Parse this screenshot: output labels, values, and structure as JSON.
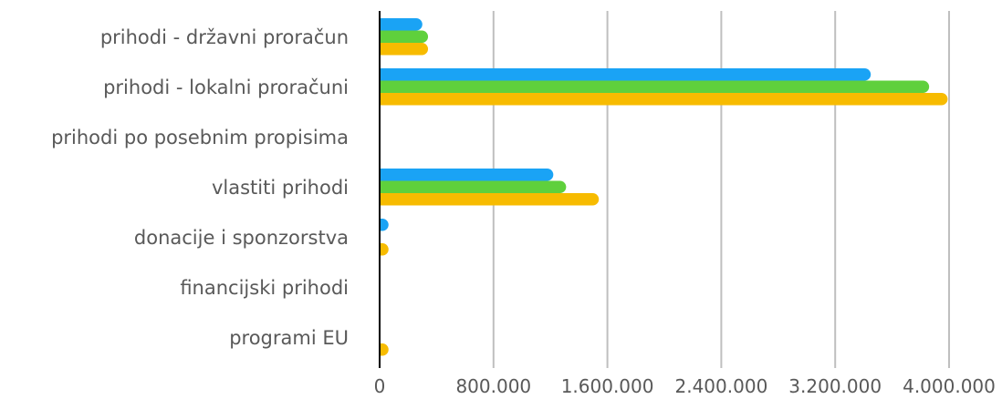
{
  "chart_data": {
    "type": "bar",
    "orientation": "horizontal",
    "title": "",
    "xlabel": "",
    "ylabel": "",
    "categories": [
      "prihodi - državni proračun",
      "prihodi - lokalni proračuni",
      "prihodi po posebnim propisima",
      "vlastiti prihodi ",
      "donacije i sponzorstva",
      "financijski prihodi",
      "programi EU"
    ],
    "series": [
      {
        "color": "#1aa3f5",
        "values": [
          300000,
          3450000,
          0,
          1220000,
          25000,
          0,
          0
        ]
      },
      {
        "color": "#5fd03c",
        "values": [
          340000,
          3860000,
          0,
          1310000,
          0,
          0,
          0
        ]
      },
      {
        "color": "#f7bb00",
        "values": [
          340000,
          3990000,
          0,
          1540000,
          18000,
          0,
          18000
        ]
      }
    ],
    "x_ticks": [
      "0",
      "800.000",
      "1.600.000",
      "2.400.000",
      "3.200.000",
      "4.000.000"
    ],
    "x_tick_values": [
      0,
      800000,
      1600000,
      2400000,
      3200000,
      4000000
    ],
    "xlim": [
      0,
      4000000
    ],
    "grid": true,
    "legend": "none"
  }
}
